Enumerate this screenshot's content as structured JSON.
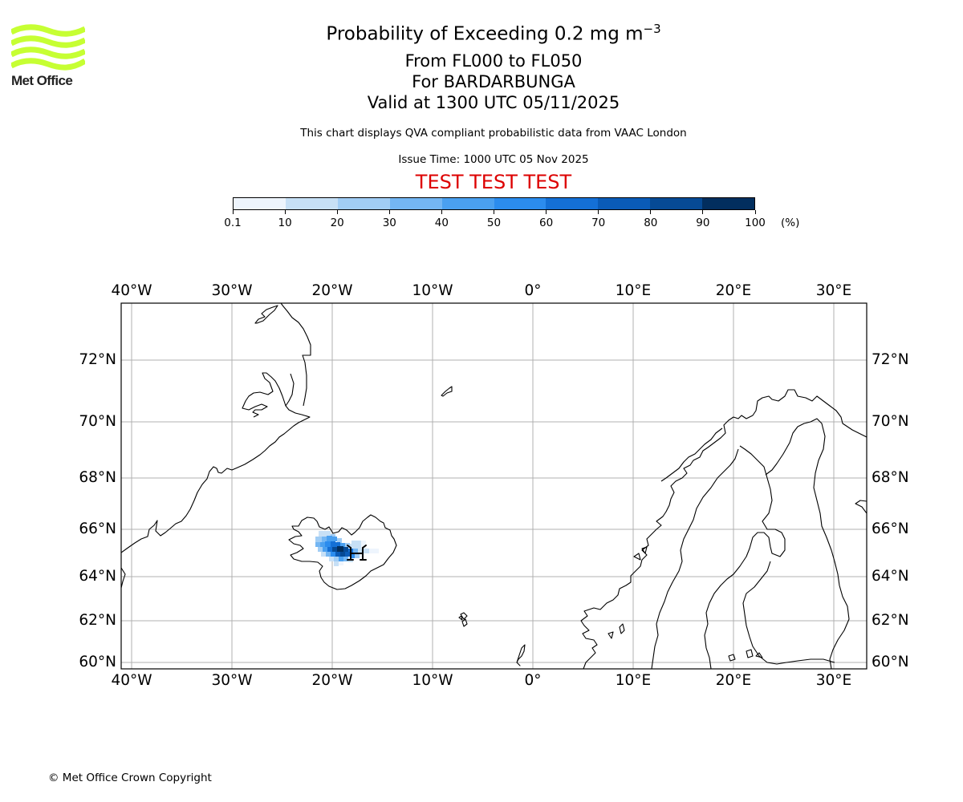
{
  "logo": {
    "text": "Met Office",
    "color": "#c6ff33"
  },
  "header": {
    "title_main": "Probability of Exceeding 0.2 mg m",
    "title_exp": "−3",
    "line2": "From FL000 to FL050",
    "line3": "For BARDARBUNGA",
    "line4": "Valid at 1300 UTC 05/11/2025",
    "note": "This chart displays QVA compliant probabilistic data from VAAC London",
    "issue": "Issue Time: 1000 UTC 05 Nov 2025",
    "test": "TEST TEST TEST"
  },
  "colorbar": {
    "labels": [
      "0.1",
      "10",
      "20",
      "30",
      "40",
      "50",
      "60",
      "70",
      "80",
      "90",
      "100"
    ],
    "unit": "(%)",
    "colors": [
      "#eef5fd",
      "#c7e0f6",
      "#a1cdf5",
      "#74b6f3",
      "#4aa0f0",
      "#2b8cee",
      "#1470d6",
      "#0a5bb7",
      "#064a95",
      "#022e5e"
    ]
  },
  "map": {
    "lon_labels": [
      "40°W",
      "30°W",
      "20°W",
      "10°W",
      "0°",
      "10°E",
      "20°E",
      "30°E"
    ],
    "lat_labels": [
      "72°N",
      "70°N",
      "68°N",
      "66°N",
      "64°N",
      "62°N",
      "60°N"
    ],
    "volcano": "Bardarbunga",
    "plume_max_probability_pct": 100
  },
  "footer": {
    "copyright": "© Met Office Crown Copyright"
  }
}
